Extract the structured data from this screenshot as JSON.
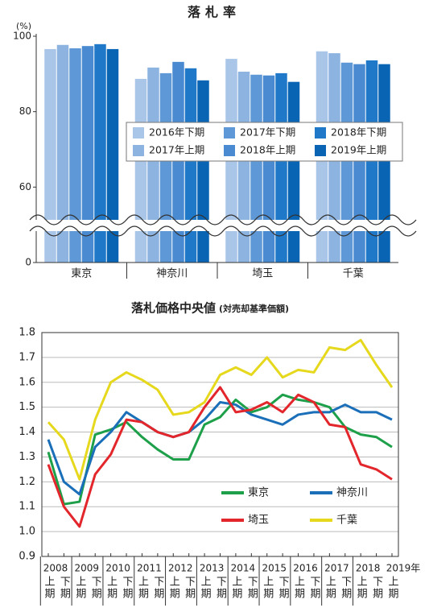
{
  "chart_data": [
    {
      "type": "bar",
      "title": "落札率",
      "y_label": "(%)",
      "categories": [
        "東京",
        "神奈川",
        "埼玉",
        "千葉"
      ],
      "series": [
        {
          "name": "2016年下期",
          "color": "#a9c6e8",
          "values": [
            96.6,
            88.7,
            94.0,
            96.0
          ]
        },
        {
          "name": "2017年上期",
          "color": "#8db4e0",
          "values": [
            97.7,
            91.7,
            90.6,
            95.5
          ]
        },
        {
          "name": "2017年下期",
          "color": "#5e98d6",
          "values": [
            96.8,
            90.2,
            89.8,
            93.0
          ]
        },
        {
          "name": "2018年上期",
          "color": "#4a8ad0",
          "values": [
            97.4,
            93.2,
            89.6,
            92.6
          ]
        },
        {
          "name": "2018年下期",
          "color": "#1f78c8",
          "values": [
            97.9,
            91.5,
            90.2,
            93.6
          ]
        },
        {
          "name": "2019年上期",
          "color": "#0a64b4",
          "values": [
            96.6,
            88.3,
            87.9,
            92.6
          ]
        }
      ],
      "ylim": [
        0,
        100
      ],
      "yticks": [
        0,
        60,
        80,
        100
      ]
    },
    {
      "type": "line",
      "title": "落札価格中央値",
      "subtitle": "(対売却基準価額)",
      "categories": [
        "上期",
        "下期",
        "上期",
        "下期",
        "上期",
        "下期",
        "上期",
        "下期",
        "上期",
        "下期",
        "上期",
        "下期",
        "上期",
        "下期",
        "上期",
        "下期",
        "上期",
        "下期",
        "上期",
        "下期",
        "上期",
        "下期",
        "上期"
      ],
      "year_labels": [
        "2008",
        "2009",
        "2010",
        "2011",
        "2012",
        "2013",
        "2014",
        "2015",
        "2016",
        "2017",
        "2018",
        "2019年"
      ],
      "series": [
        {
          "name": "東京",
          "color": "#1ea04a",
          "values": [
            1.32,
            1.11,
            1.12,
            1.39,
            1.41,
            1.44,
            1.38,
            1.33,
            1.29,
            1.29,
            1.43,
            1.46,
            1.53,
            1.48,
            1.5,
            1.55,
            1.53,
            1.52,
            1.5,
            1.42,
            1.39,
            1.38,
            1.34
          ]
        },
        {
          "name": "神奈川",
          "color": "#1a6fb8",
          "values": [
            1.37,
            1.2,
            1.15,
            1.34,
            1.4,
            1.48,
            1.44,
            1.4,
            1.38,
            1.4,
            1.45,
            1.52,
            1.51,
            1.47,
            1.45,
            1.43,
            1.47,
            1.48,
            1.48,
            1.51,
            1.48,
            1.48,
            1.45
          ]
        },
        {
          "name": "埼玉",
          "color": "#e2262b",
          "values": [
            1.27,
            1.1,
            1.02,
            1.23,
            1.31,
            1.45,
            1.44,
            1.4,
            1.38,
            1.4,
            1.5,
            1.58,
            1.48,
            1.49,
            1.52,
            1.48,
            1.55,
            1.52,
            1.43,
            1.42,
            1.27,
            1.25,
            1.21
          ]
        },
        {
          "name": "千葉",
          "color": "#e6d81c",
          "values": [
            1.44,
            1.37,
            1.21,
            1.45,
            1.6,
            1.64,
            1.61,
            1.57,
            1.47,
            1.48,
            1.52,
            1.63,
            1.66,
            1.63,
            1.7,
            1.62,
            1.65,
            1.64,
            1.74,
            1.73,
            1.77,
            1.67,
            1.58
          ]
        }
      ],
      "ylim": [
        0.9,
        1.8
      ],
      "yticks": [
        0.9,
        {
          "value": 1,
          "label": "1.0"
        },
        1.1,
        1.2,
        1.3,
        1.4,
        1.5,
        1.6,
        1.7,
        1.8
      ],
      "grid": true
    }
  ]
}
